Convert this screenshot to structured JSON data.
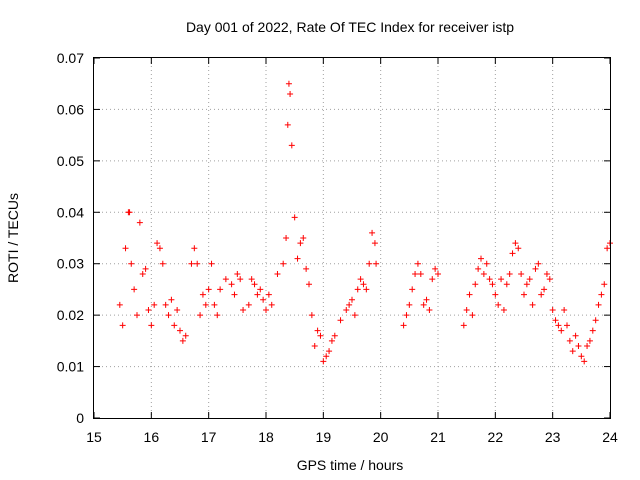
{
  "chart_data": {
    "type": "scatter",
    "title": "Day 001 of 2022, Rate Of TEC Index for receiver istp",
    "xlabel": "GPS time / hours",
    "ylabel": "ROTI / TECUs",
    "xlim": [
      15,
      24
    ],
    "ylim": [
      0,
      0.07
    ],
    "xticks": [
      15,
      16,
      17,
      18,
      19,
      20,
      21,
      22,
      23,
      24
    ],
    "yticks": [
      0,
      0.01,
      0.02,
      0.03,
      0.04,
      0.05,
      0.06,
      0.07
    ],
    "grid": true,
    "marker": "+",
    "color": "#ff0000",
    "series": [
      {
        "name": "ROTI",
        "x": [
          15.45,
          15.5,
          15.55,
          15.6,
          15.62,
          15.65,
          15.7,
          15.75,
          15.8,
          15.85,
          15.9,
          15.95,
          16.0,
          16.05,
          16.1,
          16.15,
          16.2,
          16.25,
          16.3,
          16.35,
          16.4,
          16.45,
          16.5,
          16.55,
          16.6,
          16.7,
          16.75,
          16.8,
          16.85,
          16.9,
          16.95,
          17.0,
          17.05,
          17.1,
          17.15,
          17.2,
          17.3,
          17.4,
          17.45,
          17.5,
          17.55,
          17.6,
          17.7,
          17.75,
          17.8,
          17.85,
          17.9,
          17.95,
          18.0,
          18.05,
          18.1,
          18.2,
          18.3,
          18.35,
          18.38,
          18.4,
          18.42,
          18.45,
          18.5,
          18.55,
          18.6,
          18.65,
          18.7,
          18.75,
          18.8,
          18.85,
          18.9,
          18.95,
          19.0,
          19.05,
          19.1,
          19.15,
          19.2,
          19.3,
          19.4,
          19.45,
          19.5,
          19.55,
          19.6,
          19.65,
          19.7,
          19.75,
          19.8,
          19.85,
          19.9,
          19.92,
          20.4,
          20.45,
          20.5,
          20.55,
          20.6,
          20.65,
          20.7,
          20.75,
          20.8,
          20.85,
          20.9,
          20.95,
          21.0,
          21.45,
          21.5,
          21.55,
          21.6,
          21.65,
          21.7,
          21.75,
          21.8,
          21.85,
          21.9,
          21.95,
          22.0,
          22.05,
          22.1,
          22.15,
          22.2,
          22.25,
          22.3,
          22.35,
          22.4,
          22.45,
          22.5,
          22.55,
          22.6,
          22.65,
          22.7,
          22.75,
          22.8,
          22.85,
          22.9,
          22.95,
          23.0,
          23.05,
          23.1,
          23.15,
          23.2,
          23.25,
          23.3,
          23.35,
          23.4,
          23.45,
          23.5,
          23.55,
          23.6,
          23.65,
          23.7,
          23.75,
          23.8,
          23.85,
          23.9,
          23.95,
          24.0
        ],
        "y": [
          0.022,
          0.018,
          0.033,
          0.04,
          0.04,
          0.03,
          0.025,
          0.02,
          0.038,
          0.028,
          0.029,
          0.021,
          0.018,
          0.022,
          0.034,
          0.033,
          0.03,
          0.022,
          0.02,
          0.023,
          0.018,
          0.021,
          0.017,
          0.015,
          0.016,
          0.03,
          0.033,
          0.03,
          0.02,
          0.024,
          0.022,
          0.025,
          0.03,
          0.022,
          0.02,
          0.025,
          0.027,
          0.026,
          0.024,
          0.028,
          0.027,
          0.021,
          0.022,
          0.027,
          0.026,
          0.024,
          0.025,
          0.023,
          0.021,
          0.024,
          0.022,
          0.028,
          0.03,
          0.035,
          0.057,
          0.065,
          0.063,
          0.053,
          0.039,
          0.031,
          0.034,
          0.035,
          0.029,
          0.026,
          0.02,
          0.014,
          0.017,
          0.016,
          0.011,
          0.012,
          0.013,
          0.015,
          0.016,
          0.019,
          0.021,
          0.022,
          0.023,
          0.02,
          0.025,
          0.027,
          0.026,
          0.025,
          0.03,
          0.036,
          0.034,
          0.03,
          0.018,
          0.02,
          0.022,
          0.025,
          0.028,
          0.03,
          0.028,
          0.022,
          0.023,
          0.021,
          0.027,
          0.029,
          0.028,
          0.018,
          0.021,
          0.024,
          0.02,
          0.026,
          0.029,
          0.031,
          0.028,
          0.03,
          0.027,
          0.026,
          0.024,
          0.022,
          0.027,
          0.021,
          0.026,
          0.028,
          0.032,
          0.034,
          0.033,
          0.028,
          0.024,
          0.026,
          0.027,
          0.022,
          0.029,
          0.03,
          0.024,
          0.025,
          0.028,
          0.027,
          0.021,
          0.019,
          0.018,
          0.017,
          0.021,
          0.018,
          0.015,
          0.013,
          0.016,
          0.014,
          0.012,
          0.011,
          0.014,
          0.015,
          0.017,
          0.019,
          0.022,
          0.024,
          0.026,
          0.033,
          0.034
        ]
      }
    ]
  }
}
